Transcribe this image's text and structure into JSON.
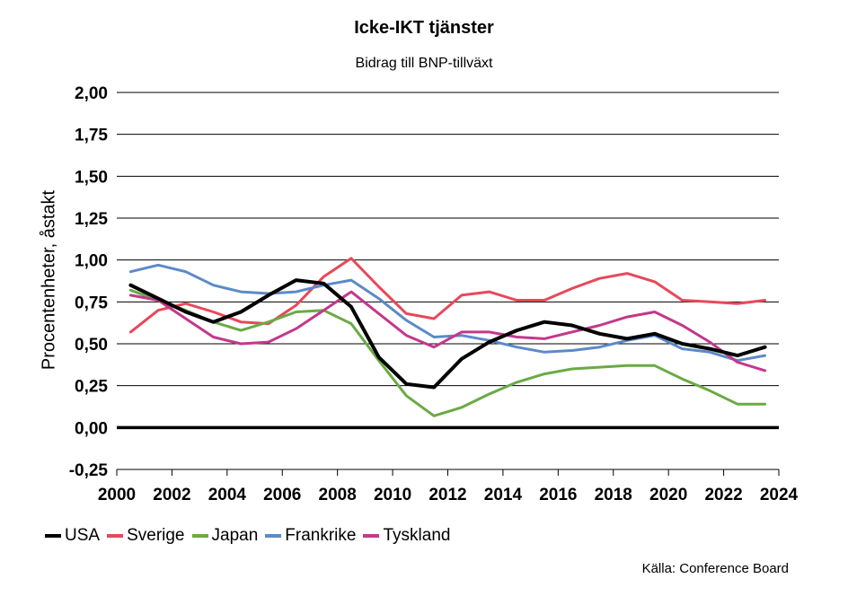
{
  "chart_data": {
    "type": "line",
    "title": "Icke-IKT tjänster",
    "subtitle": "Bidrag till BNP-tillväxt",
    "ylabel": "Procentenheter, åstakt",
    "xlabel": "",
    "xlim": [
      2000,
      2024
    ],
    "ylim": [
      -0.25,
      2.0
    ],
    "xticks": [
      "2000",
      "2002",
      "2004",
      "2006",
      "2008",
      "2010",
      "2012",
      "2014",
      "2016",
      "2018",
      "2020",
      "2022",
      "2024"
    ],
    "yticks": [
      "2,00",
      "1,75",
      "1,50",
      "1,25",
      "1,00",
      "0,75",
      "0,50",
      "0,25",
      "0,00",
      "-0,25"
    ],
    "ytick_values": [
      2.0,
      1.75,
      1.5,
      1.25,
      1.0,
      0.75,
      0.5,
      0.25,
      0.0,
      -0.25
    ],
    "grid": true,
    "legend_position": "bottom-left",
    "x": [
      2000.5,
      2001.5,
      2002.5,
      2003.5,
      2004.5,
      2005.5,
      2006.5,
      2007.5,
      2008.5,
      2009.5,
      2010.5,
      2011.5,
      2012.5,
      2013.5,
      2014.5,
      2015.5,
      2016.5,
      2017.5,
      2018.5,
      2019.5,
      2020.5,
      2021.5,
      2022.5,
      2023.5
    ],
    "series": [
      {
        "name": "USA",
        "color": "#000000",
        "width": 4,
        "values": [
          0.85,
          0.77,
          0.69,
          0.63,
          0.69,
          0.79,
          0.88,
          0.86,
          0.72,
          0.42,
          0.26,
          0.24,
          0.41,
          0.51,
          0.58,
          0.63,
          0.61,
          0.56,
          0.53,
          0.56,
          0.5,
          0.47,
          0.43,
          0.48
        ]
      },
      {
        "name": "Sverige",
        "color": "#e8485a",
        "width": 3,
        "values": [
          0.57,
          0.7,
          0.74,
          0.69,
          0.63,
          0.62,
          0.73,
          0.9,
          1.01,
          0.84,
          0.68,
          0.65,
          0.79,
          0.81,
          0.76,
          0.76,
          0.83,
          0.89,
          0.92,
          0.87,
          0.76,
          0.75,
          0.74,
          0.76
        ]
      },
      {
        "name": "Japan",
        "color": "#6aaa44",
        "width": 3,
        "values": [
          0.82,
          0.76,
          0.7,
          0.63,
          0.58,
          0.63,
          0.69,
          0.7,
          0.62,
          0.4,
          0.19,
          0.07,
          0.12,
          0.2,
          0.27,
          0.32,
          0.35,
          0.36,
          0.37,
          0.37,
          0.29,
          0.22,
          0.14,
          0.14
        ]
      },
      {
        "name": "Frankrike",
        "color": "#5b8ac8",
        "width": 3,
        "values": [
          0.93,
          0.97,
          0.93,
          0.85,
          0.81,
          0.8,
          0.81,
          0.85,
          0.88,
          0.77,
          0.64,
          0.54,
          0.55,
          0.52,
          0.48,
          0.45,
          0.46,
          0.48,
          0.52,
          0.55,
          0.47,
          0.45,
          0.4,
          0.43
        ]
      },
      {
        "name": "Tyskland",
        "color": "#c3388b",
        "width": 3,
        "values": [
          0.79,
          0.76,
          0.65,
          0.54,
          0.5,
          0.51,
          0.59,
          0.7,
          0.81,
          0.68,
          0.55,
          0.48,
          0.57,
          0.57,
          0.54,
          0.53,
          0.57,
          0.61,
          0.66,
          0.69,
          0.61,
          0.51,
          0.39,
          0.34
        ]
      }
    ],
    "source": "Källa: Conference Board"
  }
}
